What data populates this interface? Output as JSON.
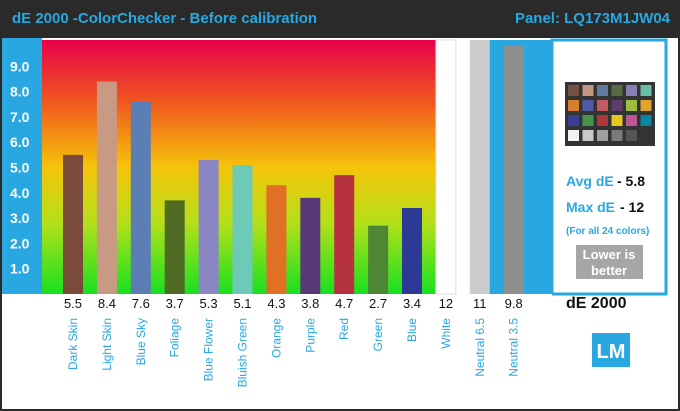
{
  "header": {
    "title": "dE 2000 -ColorChecker  - Before calibration",
    "panel": "Panel: LQ173M1JW04"
  },
  "chart_data": {
    "type": "bar",
    "categories": [
      "Dark Skin",
      "Light Skin",
      "Blue Sky",
      "Foliage",
      "Blue Flower",
      "Bluish Green",
      "Orange",
      "Purple",
      "Red",
      "Green",
      "Blue",
      "White",
      "Neutral 6.5",
      "Neutral 3.5"
    ],
    "values": [
      5.5,
      8.4,
      7.6,
      3.7,
      5.3,
      5.1,
      4.3,
      3.8,
      4.7,
      2.7,
      3.4,
      12,
      11,
      9.8
    ],
    "value_labels": [
      "5.5",
      "8.4",
      "7.6",
      "3.7",
      "5.3",
      "5.1",
      "4.3",
      "3.8",
      "4.7",
      "2.7",
      "3.4",
      "12",
      "11",
      "9.8"
    ],
    "colors": [
      "#7a4a3a",
      "#c89a84",
      "#5b7fb4",
      "#4f6b24",
      "#8a86c4",
      "#6ccab6",
      "#e07024",
      "#583a78",
      "#b63240",
      "#4e8636",
      "#2c3a96",
      "#ffffff",
      "#cccccc",
      "#8f8f8f"
    ],
    "ylim": [
      0,
      10
    ],
    "yticks": [
      "1.0",
      "2.0",
      "3.0",
      "4.0",
      "5.0",
      "6.0",
      "7.0",
      "8.0",
      "9.0"
    ],
    "x_axis_title": "dE 2000",
    "grid": false,
    "background": "vertical gradient red (top) to green (bottom)"
  },
  "stats": {
    "avg_label": "Avg dE",
    "avg_value": "- 5.8",
    "max_label": "Max dE",
    "max_value": "- 12",
    "note": "(For all 24 colors)",
    "lower_line1": "Lower is",
    "lower_line2": "better"
  },
  "logo": "LM",
  "colorchecker_icon": "colorchecker-swatch-grid-icon"
}
